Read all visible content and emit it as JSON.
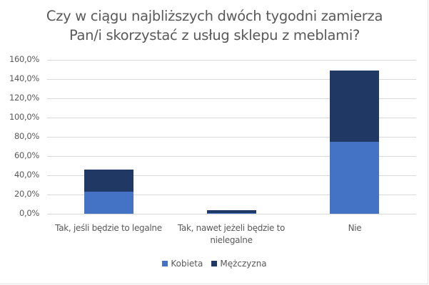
{
  "chart_data": {
    "type": "bar",
    "stacked": true,
    "title": "Czy w ciągu najbliższych dwóch tygodni zamierza Pan/i skorzystać z usług sklepu z meblami?",
    "title_lines": [
      "Czy w ciągu najbliższych dwóch tygodni zamierza",
      "Pan/i skorzystać z usług sklepu z meblami?"
    ],
    "categories": [
      "Tak, jeśli będzie to legalne",
      "Tak, nawet jeżeli będzie to nielegalne",
      "Nie"
    ],
    "category_lines": [
      [
        "Tak, jeśli będzie to legalne"
      ],
      [
        "Tak, nawet jeżeli będzie to",
        "nielegalne"
      ],
      [
        "Nie"
      ]
    ],
    "series": [
      {
        "name": "Kobieta",
        "color": "#4472C4",
        "values": [
          23,
          0.5,
          75
        ]
      },
      {
        "name": "Mężczyzna",
        "color": "#203864",
        "values": [
          23,
          3.2,
          74
        ]
      }
    ],
    "xlabel": "",
    "ylabel": "",
    "ylim": [
      0,
      160
    ],
    "yticks": [
      "0,0%",
      "20,0%",
      "40,0%",
      "60,0%",
      "80,0%",
      "100,0%",
      "120,0%",
      "140,0%",
      "160,0%"
    ],
    "ytick_values": [
      0,
      20,
      40,
      60,
      80,
      100,
      120,
      140,
      160
    ],
    "grid": true,
    "legend_position": "bottom"
  }
}
